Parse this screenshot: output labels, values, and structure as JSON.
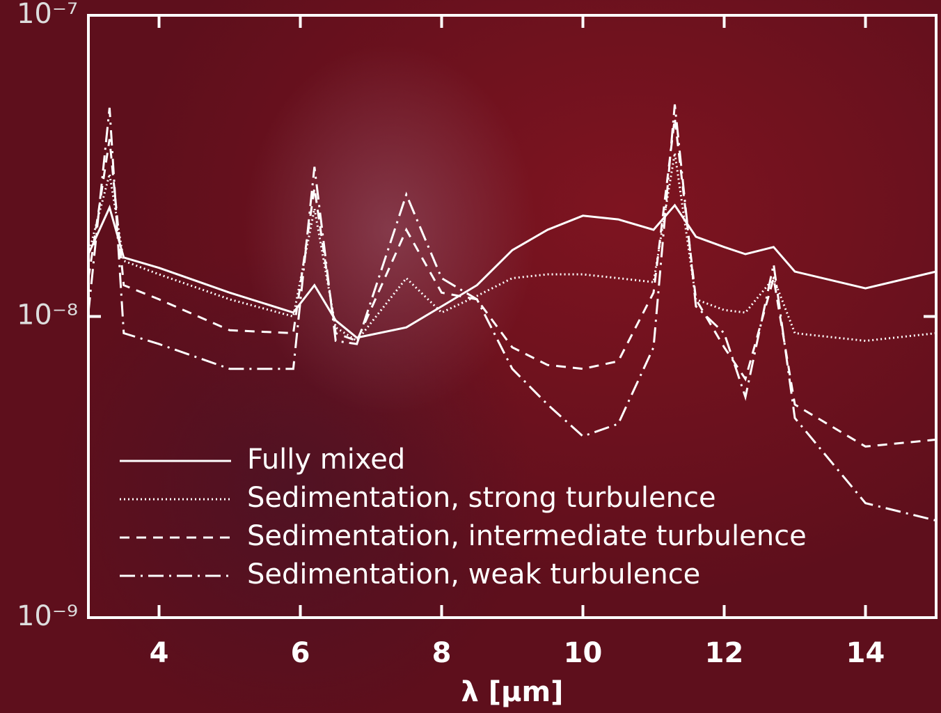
{
  "chart_data": {
    "type": "line",
    "x_label": "λ [μm]",
    "log_y": true,
    "legend": "lower left",
    "xlim": [
      3,
      15
    ],
    "ylim": [
      1e-09,
      1e-07
    ],
    "xticks": [
      4,
      6,
      8,
      10,
      12,
      14
    ],
    "yticks": [
      {
        "value": 1e-09,
        "label": "10⁻⁹"
      },
      {
        "value": 1e-08,
        "label": "10⁻⁸"
      },
      {
        "value": 1e-07,
        "label": "10⁻⁷"
      }
    ],
    "x": [
      3.0,
      3.3,
      3.5,
      4,
      5,
      5.9,
      6.2,
      6.5,
      6.8,
      7.5,
      8,
      8.5,
      9,
      9.5,
      10,
      10.5,
      11,
      11.3,
      11.6,
      12,
      12.3,
      12.7,
      13,
      14,
      15
    ],
    "series": [
      {
        "name": "Fully mixed",
        "color": "#ffffff",
        "style": "solid",
        "values": [
          1.61e-08,
          2.3e-08,
          1.57e-08,
          1.45e-08,
          1.2e-08,
          1.03e-08,
          1.27e-08,
          9.7e-09,
          8.5e-09,
          9.2e-09,
          1.08e-08,
          1.27e-08,
          1.66e-08,
          1.94e-08,
          2.16e-08,
          2.1e-08,
          1.94e-08,
          2.34e-08,
          1.84e-08,
          1.7e-08,
          1.61e-08,
          1.7e-08,
          1.41e-08,
          1.24e-08,
          1.41e-08
        ]
      },
      {
        "name": "Sedimentation, strong turbulence",
        "color": "#ffffff",
        "style": "dotted",
        "values": [
          1.61e-08,
          2.97e-08,
          1.53e-08,
          1.38e-08,
          1.14e-08,
          1e-08,
          2.28e-08,
          9.2e-09,
          8.3e-09,
          1.34e-08,
          1.03e-08,
          1.17e-08,
          1.34e-08,
          1.38e-08,
          1.38e-08,
          1.34e-08,
          1.3e-08,
          3.49e-08,
          1.14e-08,
          1.05e-08,
          1.03e-08,
          1.34e-08,
          8.8e-09,
          8.3e-09,
          8.8e-09
        ]
      },
      {
        "name": "Sedimentation, intermediate turbulence",
        "color": "#ffffff",
        "style": "dashed",
        "values": [
          1.34e-08,
          3.88e-08,
          1.27e-08,
          1.14e-08,
          9e-09,
          8.8e-09,
          2.67e-08,
          8.8e-09,
          8.3e-09,
          1.94e-08,
          1.2e-08,
          1.14e-08,
          7.9e-09,
          6.9e-09,
          6.7e-09,
          7.1e-09,
          1.2e-08,
          4.55e-08,
          1.14e-08,
          7.9e-09,
          6.2e-09,
          1.34e-08,
          5.1e-09,
          3.7e-09,
          3.9e-09
        ]
      },
      {
        "name": "Sedimentation, weak turbulence",
        "color": "#ffffff",
        "style": "dashdot",
        "values": [
          1.03e-08,
          4.93e-08,
          8.8e-09,
          8.1e-09,
          6.7e-09,
          6.7e-09,
          3.14e-08,
          8.3e-09,
          8.1e-09,
          2.54e-08,
          1.34e-08,
          1.14e-08,
          6.7e-09,
          5.1e-09,
          4e-09,
          4.4e-09,
          7.9e-09,
          5.06e-08,
          1.08e-08,
          8.8e-09,
          5.4e-09,
          1.49e-08,
          4.6e-09,
          2.4e-09,
          2.1e-09
        ]
      }
    ]
  }
}
